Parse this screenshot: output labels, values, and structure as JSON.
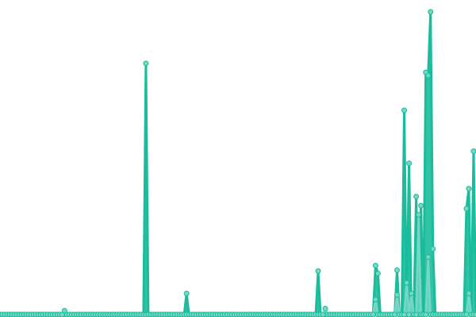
{
  "chart_data": {
    "type": "line",
    "title": "",
    "xlabel": "",
    "ylabel": "",
    "grid": false,
    "axes_visible": false,
    "ylim": [
      0,
      100
    ],
    "colors": {
      "series_a": "#1abc9c",
      "series_b": "#76d7c4",
      "marker_fill": "#76d7c4"
    },
    "series": [
      {
        "values": [
          0,
          0,
          0,
          0,
          0,
          0,
          0,
          0,
          0,
          0,
          0,
          0,
          0,
          0,
          0,
          0,
          0,
          0,
          0,
          0,
          0,
          0,
          0,
          0,
          0,
          0,
          0,
          0,
          0,
          0,
          0,
          0,
          0,
          0,
          0,
          0,
          0,
          0,
          0,
          0,
          0,
          0,
          0,
          0,
          0,
          0,
          0,
          0,
          0,
          0,
          0,
          0,
          0,
          0,
          0,
          0,
          0,
          0,
          0,
          0,
          0,
          83,
          0,
          0,
          0,
          0,
          0,
          0,
          0,
          0,
          0,
          0,
          0,
          0,
          0,
          0,
          0,
          0,
          7,
          0,
          0,
          0,
          0,
          0,
          0,
          0,
          0,
          0,
          0,
          0,
          0,
          0,
          0,
          0,
          0,
          0,
          0,
          0,
          0,
          0,
          0,
          0,
          0,
          0,
          0,
          0,
          0,
          0,
          0,
          0,
          0,
          0,
          0,
          0,
          0,
          0,
          0,
          0,
          0,
          0,
          0,
          0,
          0,
          0,
          0,
          0,
          0,
          0,
          0,
          0,
          0,
          0,
          0,
          14.4,
          0,
          0,
          0,
          0,
          0,
          0,
          0,
          0,
          0,
          0,
          0,
          0,
          0,
          0,
          0,
          0,
          0,
          0,
          0,
          0,
          0,
          0,
          0,
          16.2,
          13.6,
          0,
          0,
          0,
          0,
          0,
          0,
          0,
          14.7,
          0,
          0,
          67.5,
          0,
          50,
          0,
          0,
          39,
          0,
          36,
          0,
          80,
          79,
          100,
          21.7,
          0,
          0,
          0,
          0,
          0,
          0,
          0,
          0,
          0,
          0,
          0,
          0,
          0,
          35,
          41.6,
          0,
          54,
          0
        ]
      },
      {
        "values": [
          0,
          0,
          0,
          0,
          0,
          0,
          0,
          0,
          0,
          0,
          0,
          0,
          0,
          0,
          0,
          0,
          0,
          0,
          0,
          0,
          0,
          0,
          0,
          0,
          0,
          0,
          0,
          1.3,
          0,
          0,
          0,
          0,
          0,
          0,
          0,
          0,
          0,
          0,
          0,
          0,
          0,
          0,
          0,
          0,
          0,
          0,
          0,
          0,
          0,
          0,
          0,
          0,
          0,
          0,
          0,
          0,
          0,
          0,
          0,
          0,
          0,
          0,
          0,
          0,
          0,
          0,
          0,
          0,
          0,
          0,
          0,
          0,
          0,
          0,
          0,
          0,
          0,
          0,
          0,
          0,
          0,
          0,
          0,
          0,
          0,
          0,
          0,
          0,
          0,
          0,
          0,
          0,
          0,
          0,
          0,
          0,
          0,
          0,
          0,
          0,
          0,
          0,
          0,
          0,
          0,
          0,
          0,
          0,
          0,
          0,
          0,
          0,
          0,
          0,
          0,
          0,
          0,
          0,
          0,
          0,
          0,
          0,
          0,
          0,
          0,
          0,
          0,
          0,
          0,
          0,
          0,
          0,
          0,
          0,
          0,
          0,
          2,
          0,
          0,
          0,
          0,
          0,
          0,
          0,
          0,
          0,
          0,
          0,
          0,
          0,
          0,
          0,
          0,
          0,
          0,
          0,
          0,
          5,
          0,
          0,
          0,
          0,
          0,
          0,
          0,
          0,
          6.5,
          0,
          0,
          0,
          10.5,
          0,
          7,
          0,
          0,
          33,
          0,
          0,
          0,
          19,
          0,
          0,
          0,
          0,
          0,
          0,
          0,
          0,
          0,
          0,
          0,
          0,
          0,
          0,
          0,
          0,
          7,
          0,
          0,
          0
        ]
      }
    ]
  }
}
